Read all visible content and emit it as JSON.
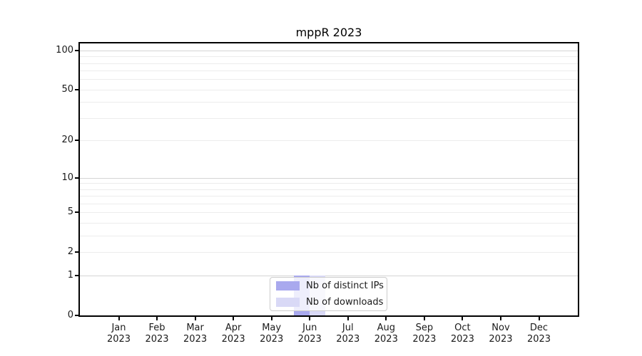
{
  "chart_data": {
    "type": "bar",
    "title": "mppR 2023",
    "categories": [
      "Jan\n2023",
      "Feb\n2023",
      "Mar\n2023",
      "Apr\n2023",
      "May\n2023",
      "Jun\n2023",
      "Jul\n2023",
      "Aug\n2023",
      "Sep\n2023",
      "Oct\n2023",
      "Nov\n2023",
      "Dec\n2023"
    ],
    "series": [
      {
        "name": "Nb of distinct IPs",
        "color": "#a9a9ee",
        "values": [
          0,
          0,
          0,
          0,
          0,
          1,
          0,
          0,
          0,
          0,
          0,
          0
        ]
      },
      {
        "name": "Nb of downloads",
        "color": "#d9d9f6",
        "values": [
          0,
          0,
          0,
          0,
          0,
          1,
          0,
          0,
          0,
          0,
          0,
          0
        ]
      }
    ],
    "y_scale": "log1p",
    "ylim": [
      0,
      113
    ],
    "y_ticks": [
      0,
      1,
      2,
      5,
      10,
      20,
      50,
      100
    ],
    "gridlines_major": [
      1,
      10,
      100
    ],
    "gridlines_minor": [
      2,
      3,
      4,
      5,
      6,
      7,
      8,
      9,
      20,
      30,
      40,
      50,
      60,
      70,
      80,
      90
    ],
    "xlabel": "",
    "ylabel": "",
    "grid": "horizontal",
    "legend_position": "lower center"
  }
}
